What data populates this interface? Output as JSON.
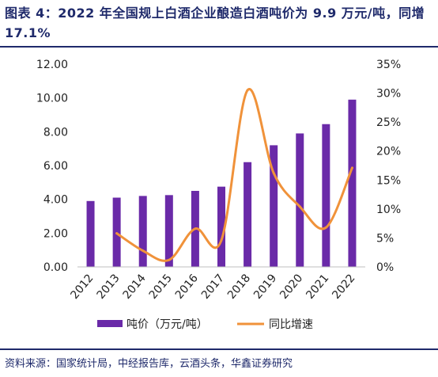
{
  "title": "图表 4：2022 年全国规上白酒企业酿造白酒吨价为 9.9 万元/吨，同增17.1%",
  "source": "资料来源：国家统计局，中经报告库，云酒头条，华鑫证券研究",
  "chart_data": {
    "type": "bar",
    "categories": [
      "2012",
      "2013",
      "2014",
      "2015",
      "2016",
      "2017",
      "2018",
      "2019",
      "2020",
      "2021",
      "2022"
    ],
    "series": [
      {
        "name": "吨价（万元/吨）",
        "type": "bar",
        "axis": "left",
        "color": "#6a2aa8",
        "values": [
          3.9,
          4.1,
          4.2,
          4.25,
          4.5,
          4.75,
          6.2,
          7.2,
          7.9,
          8.45,
          9.9
        ]
      },
      {
        "name": "同比增速",
        "type": "line",
        "axis": "right",
        "color": "#f0923a",
        "values": [
          null,
          5.8,
          2.8,
          1.2,
          6.6,
          4.6,
          30.5,
          16.2,
          10.4,
          6.8,
          17.1
        ]
      }
    ],
    "yleft": {
      "ticks": [
        "0.00",
        "2.00",
        "4.00",
        "6.00",
        "8.00",
        "10.00",
        "12.00"
      ],
      "lim": [
        0,
        12
      ]
    },
    "yright": {
      "ticks": [
        "0%",
        "5%",
        "10%",
        "15%",
        "20%",
        "25%",
        "30%",
        "35%"
      ],
      "lim": [
        0,
        35
      ]
    },
    "legend_position": "bottom"
  }
}
